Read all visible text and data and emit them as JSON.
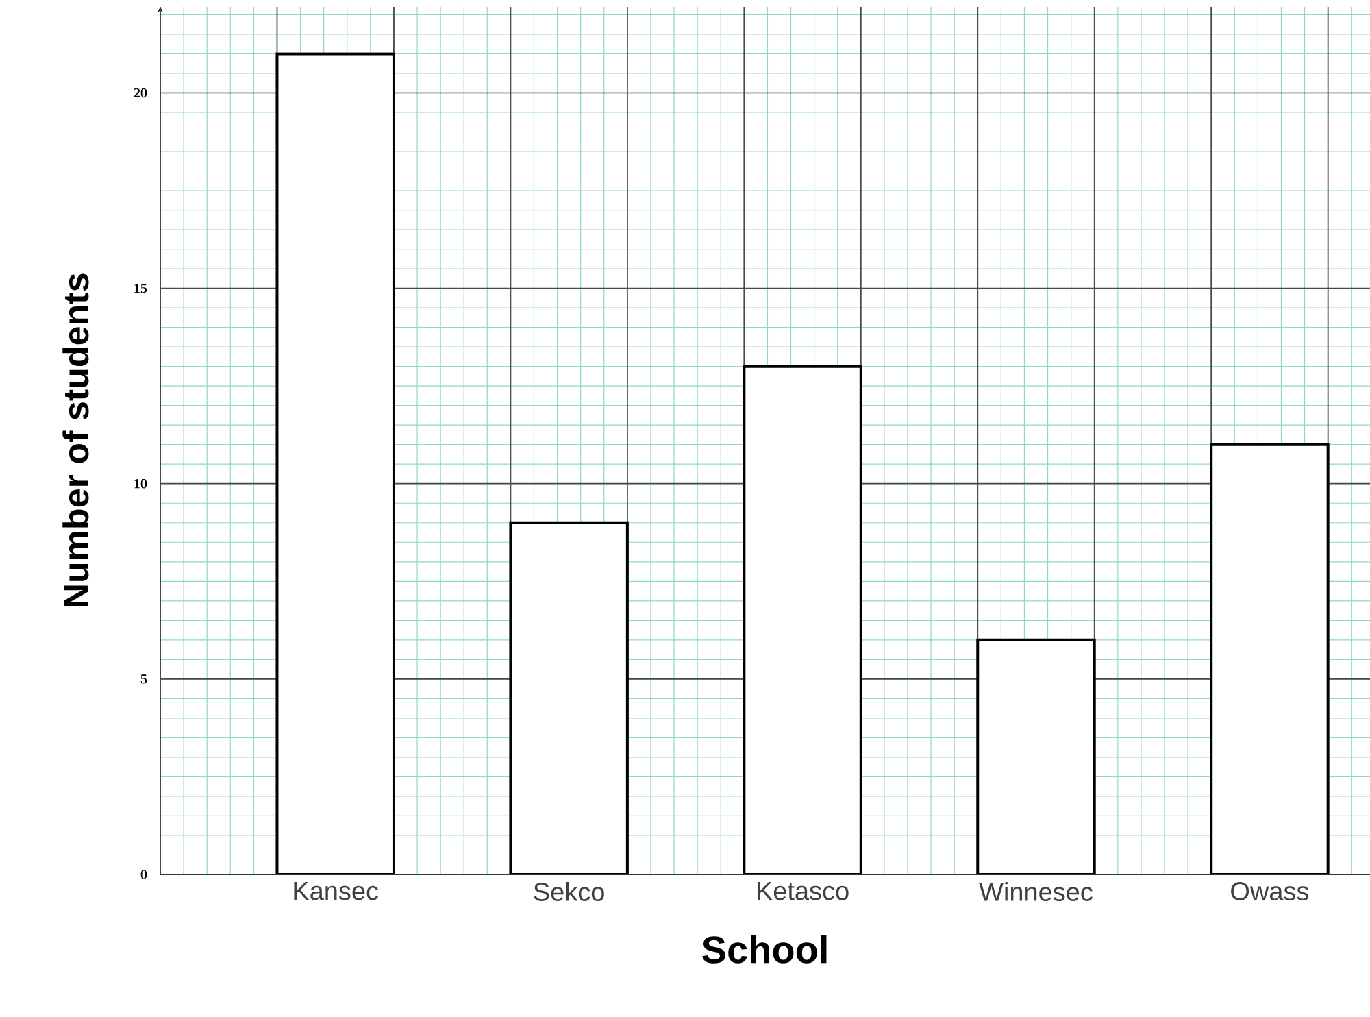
{
  "chart_data": {
    "type": "bar",
    "xlabel": "School",
    "ylabel": "Number of students",
    "categories": [
      "Kansec",
      "Sekco",
      "Ketasco",
      "Winnesec",
      "Owass"
    ],
    "values": [
      21,
      9,
      13,
      6,
      11
    ],
    "color": "#ffffff",
    "ylim": [
      0,
      22.2
    ],
    "yticks": [
      0,
      5,
      10,
      15,
      20
    ],
    "grid": true
  }
}
